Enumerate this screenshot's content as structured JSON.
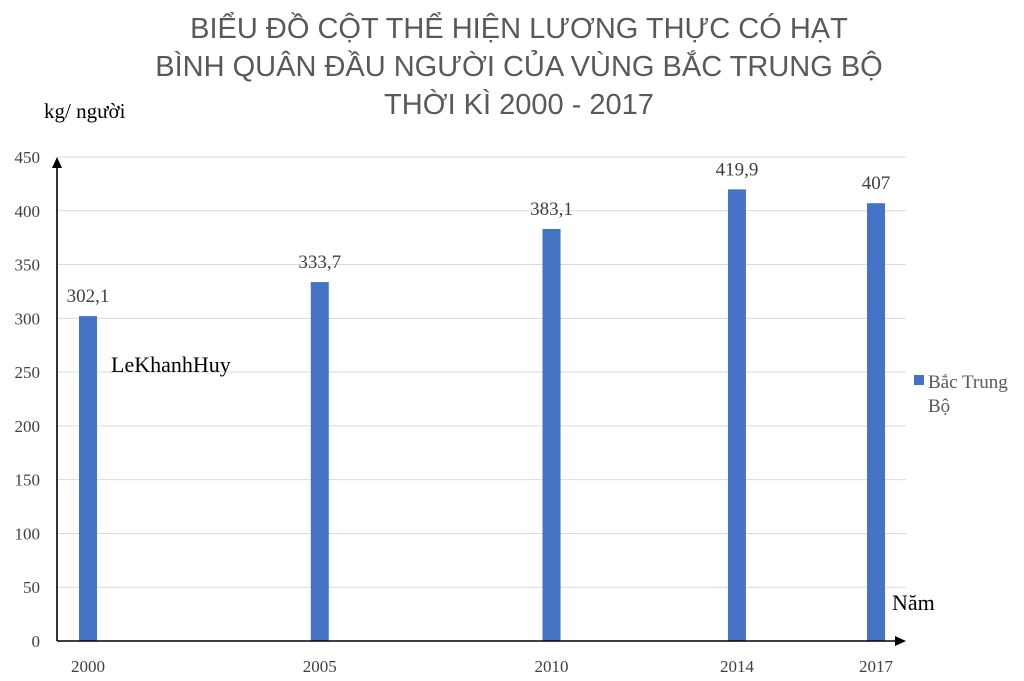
{
  "chart_data": {
    "type": "bar",
    "title_lines": [
      "BIỂU ĐỒ CỘT THỂ HIỆN LƯƠNG THỰC CÓ HẠT",
      "BÌNH QUÂN ĐẦU NGƯỜI CỦA VÙNG BẮC TRUNG BỘ",
      "THỜI KÌ 2000 - 2017"
    ],
    "ylabel": "kg/ người",
    "xlabel": "Năm",
    "x": [
      2000,
      2005,
      2010,
      2014,
      2017
    ],
    "categories": [
      "2000",
      "2005",
      "2010",
      "2014",
      "2017"
    ],
    "series": [
      {
        "name": "Bắc Trung Bộ",
        "values": [
          302.1,
          333.7,
          383.1,
          419.9,
          407
        ],
        "labels": [
          "302,1",
          "333,7",
          "383,1",
          "419,9",
          "407"
        ],
        "color": "#4472c4"
      }
    ],
    "ylim": [
      0,
      450
    ],
    "yticks": [
      0,
      50,
      100,
      150,
      200,
      250,
      300,
      350,
      400,
      450
    ],
    "grid": true,
    "legend_position": "right",
    "legend_lines": [
      "Bắc Trung",
      "Bộ"
    ],
    "annotation": "LeKhanhHuy"
  }
}
